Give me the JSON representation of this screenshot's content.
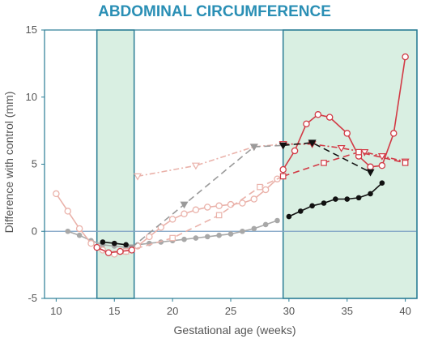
{
  "chart_data": {
    "type": "line",
    "title": "ABDOMINAL CIRCUMFERENCE",
    "xlabel": "Gestational age (weeks)",
    "ylabel": "Difference with control (mm)",
    "xlim": [
      9,
      41
    ],
    "ylim": [
      -5,
      15
    ],
    "xticks": [
      10,
      15,
      20,
      25,
      30,
      35,
      40
    ],
    "yticks": [
      -5,
      0,
      5,
      10,
      15
    ],
    "grid": false,
    "legend": "none",
    "shaded_regions": [
      {
        "x": [
          13.5,
          16.7
        ],
        "color": "#d9efe2",
        "border": "#2a7d95"
      },
      {
        "x": [
          29.5,
          41
        ],
        "color": "#d9efe2",
        "border": "#2a7d95"
      }
    ],
    "zero_line_color": "#7fa3c4",
    "series": [
      {
        "style": "solid",
        "marker": "filled-circle",
        "color": "#a8a8a8",
        "x": [
          11,
          12,
          13,
          14,
          15,
          16,
          17,
          18,
          19,
          20,
          21,
          22,
          23,
          24,
          25,
          26,
          27,
          28,
          29
        ],
        "y": [
          0.0,
          -0.3,
          -0.7,
          -1.0,
          -1.1,
          -1.2,
          -1.0,
          -0.9,
          -0.8,
          -0.7,
          -0.6,
          -0.5,
          -0.4,
          -0.3,
          -0.2,
          0.0,
          0.2,
          0.5,
          0.8
        ]
      },
      {
        "style": "solid",
        "marker": "filled-circle",
        "color": "#111111",
        "x": [
          14,
          15,
          16
        ],
        "y": [
          -0.8,
          -0.9,
          -1.0
        ]
      },
      {
        "style": "solid",
        "marker": "filled-circle",
        "color": "#111111",
        "x": [
          30,
          31,
          32,
          33,
          34,
          35,
          36,
          37,
          38
        ],
        "y": [
          1.1,
          1.5,
          1.9,
          2.1,
          2.4,
          2.4,
          2.5,
          2.8,
          3.6
        ]
      },
      {
        "style": "solid",
        "marker": "open-circle",
        "color": "#eab2aa",
        "x": [
          10,
          11,
          12,
          13,
          14,
          15,
          16,
          17,
          18,
          19,
          20,
          21,
          22,
          23,
          24,
          25,
          26,
          27,
          28,
          29
        ],
        "y": [
          2.8,
          1.5,
          0.2,
          -0.9,
          -1.4,
          -1.7,
          -1.5,
          -1.1,
          -0.4,
          0.3,
          0.9,
          1.3,
          1.6,
          1.8,
          1.9,
          2.0,
          2.1,
          2.4,
          3.1,
          3.9
        ]
      },
      {
        "style": "solid",
        "marker": "open-circle",
        "color": "#d23a45",
        "x": [
          13.5,
          14.5,
          15.5,
          16.5
        ],
        "y": [
          -1.2,
          -1.6,
          -1.5,
          -1.4
        ]
      },
      {
        "style": "solid",
        "marker": "open-circle",
        "color": "#d23a45",
        "x": [
          29.5,
          30.5,
          31.5,
          32.5,
          33.5,
          35,
          36,
          37,
          38,
          39,
          40
        ],
        "y": [
          4.6,
          6.0,
          8.0,
          8.7,
          8.5,
          7.3,
          5.6,
          4.8,
          4.9,
          7.3,
          13.0
        ]
      },
      {
        "style": "dashdot",
        "marker": "open-triangle-down",
        "color": "#eab2aa",
        "x": [
          17,
          22,
          27,
          29.5
        ],
        "y": [
          4.1,
          4.9,
          6.3,
          6.5
        ]
      },
      {
        "style": "dashdot",
        "marker": "open-triangle-down",
        "color": "#d23a45",
        "x": [
          29.5,
          32,
          34.5,
          36.5,
          38,
          40
        ],
        "y": [
          6.5,
          6.5,
          6.2,
          5.9,
          5.6,
          5.2
        ]
      },
      {
        "style": "dashed",
        "marker": "open-square",
        "color": "#eab2aa",
        "x": [
          16,
          20,
          24,
          27.5,
          29.5
        ],
        "y": [
          -1.5,
          -0.5,
          1.2,
          3.3,
          4.1
        ]
      },
      {
        "style": "dashed",
        "marker": "open-square",
        "color": "#d23a45",
        "x": [
          29.5,
          33,
          36,
          40
        ],
        "y": [
          4.1,
          5.1,
          5.9,
          5.1
        ]
      },
      {
        "style": "dashed",
        "marker": "filled-triangle-down",
        "color": "#9a9a9a",
        "x": [
          16.5,
          21,
          27,
          29.5
        ],
        "y": [
          -1.2,
          2.0,
          6.3,
          6.4
        ]
      },
      {
        "style": "dashed",
        "marker": "filled-triangle-down",
        "color": "#111111",
        "x": [
          29.5,
          32,
          37
        ],
        "y": [
          6.4,
          6.6,
          4.4
        ]
      }
    ]
  }
}
